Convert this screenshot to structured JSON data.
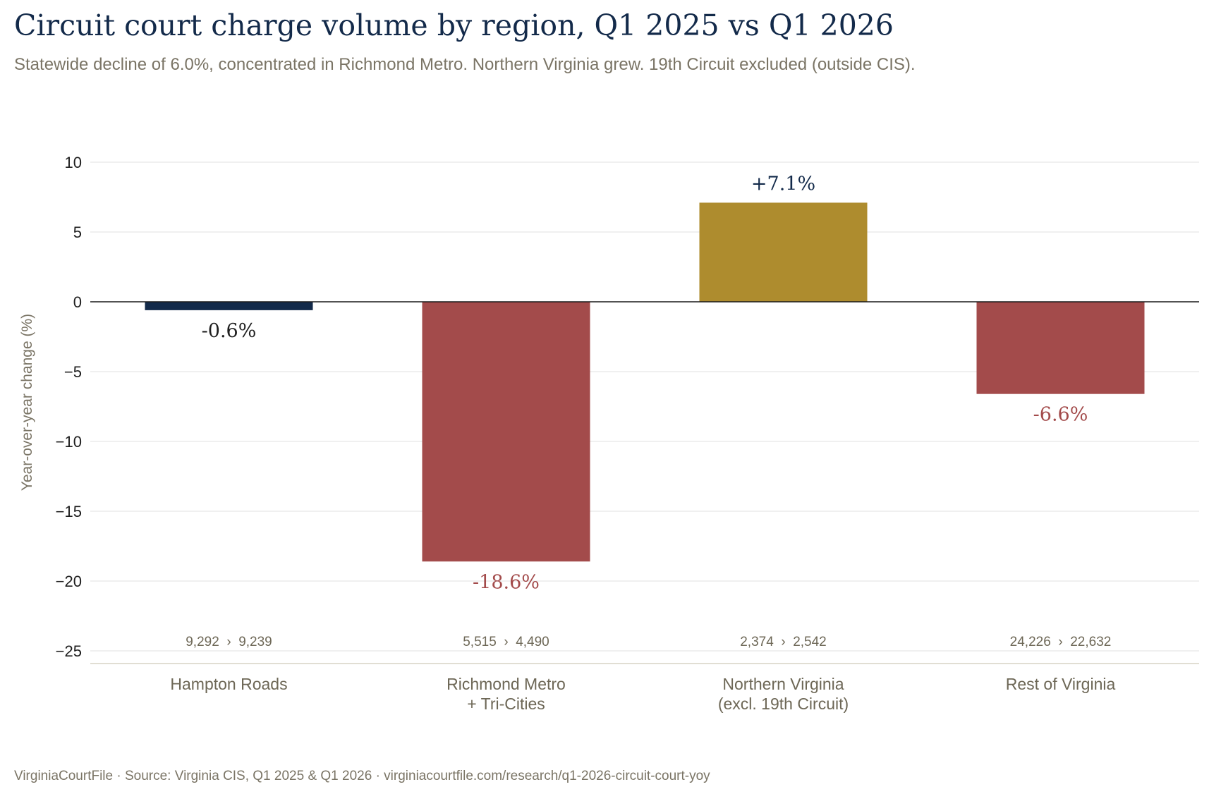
{
  "title": "Circuit court charge volume by region, Q1 2025 vs Q1 2026",
  "subtitle": "Statewide decline of 6.0%, concentrated in Richmond Metro. Northern Virginia grew. 19th Circuit excluded (outside CIS).",
  "footer": "VirginiaCourtFile · Source: Virginia CIS, Q1 2025 & Q1 2026 · virginiacourtfile.com/research/q1-2026-circuit-court-yoy",
  "colors": {
    "title": "#132a4a",
    "navy": "#132a4a",
    "red": "#a34b4b",
    "gold": "#ae8c2e",
    "muted": "#7a7465",
    "grid": "#e6e6e6"
  },
  "chart_data": {
    "type": "bar",
    "categories": [
      [
        "Hampton Roads"
      ],
      [
        "Richmond Metro",
        "+ Tri-Cities"
      ],
      [
        "Northern Virginia",
        "(excl. 19th Circuit)"
      ],
      [
        "Rest of Virginia"
      ]
    ],
    "values": [
      -0.6,
      -18.6,
      7.1,
      -6.6
    ],
    "value_labels": [
      "-0.6%",
      "-18.6%",
      "+7.1%",
      "-6.6%"
    ],
    "bar_colors": [
      "#132a4a",
      "#a34b4b",
      "#ae8c2e",
      "#a34b4b"
    ],
    "label_colors": [
      "#1e1e1e",
      "#a34b4b",
      "#132a4a",
      "#a34b4b"
    ],
    "q1_2025": [
      "9,292",
      "5,515",
      "2,374",
      "24,226"
    ],
    "q1_2026": [
      "9,239",
      "4,490",
      "2,542",
      "22,632"
    ],
    "count_separator": "›",
    "ylabel": "Year-over-year change (%)",
    "xlabel": "",
    "yticks": [
      10,
      5,
      0,
      -5,
      -10,
      -15,
      -20,
      -25
    ],
    "ytick_labels": [
      "10",
      "5",
      "0",
      "−5",
      "−10",
      "−15",
      "−20",
      "−25"
    ],
    "ylim": [
      -25.9,
      12
    ],
    "grid": true,
    "legend": "none"
  }
}
